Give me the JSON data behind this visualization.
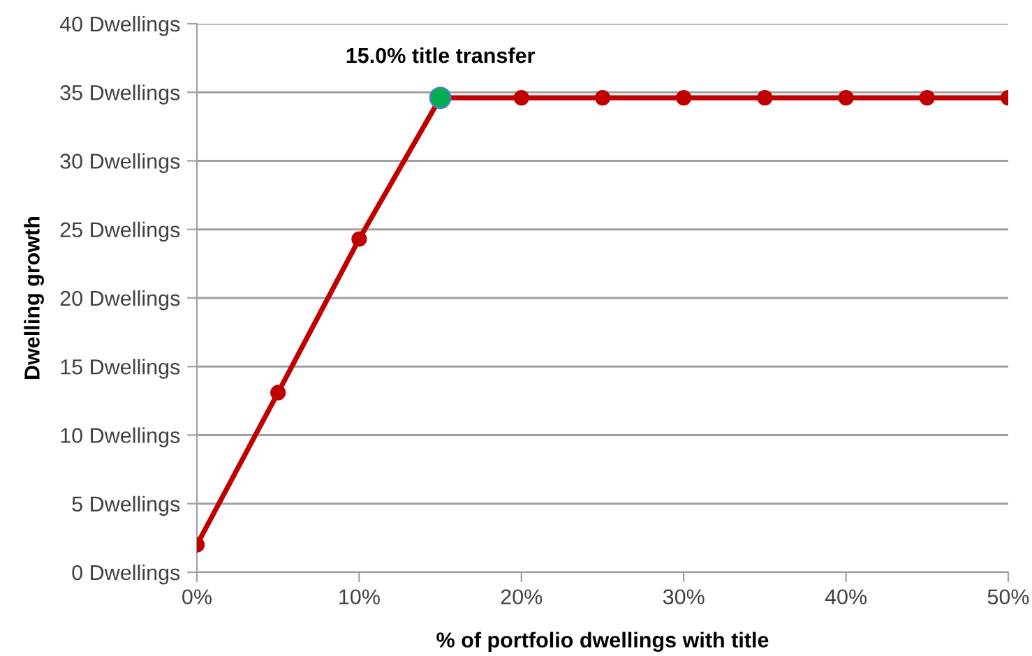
{
  "chart_data": {
    "type": "line",
    "xlabel": "% of portfolio dwellings with title",
    "ylabel": "Dwelling growth",
    "x": [
      0,
      5,
      10,
      15,
      20,
      25,
      30,
      35,
      40,
      45,
      50
    ],
    "series": [
      {
        "color": "#c00000",
        "values": [
          2.0,
          13.1,
          24.3,
          34.6,
          34.6,
          34.6,
          34.6,
          34.6,
          34.6,
          34.6,
          34.6
        ]
      },
      {
        "type": "scatter",
        "color": "#00b050",
        "x": [
          15
        ],
        "values": [
          34.6
        ]
      }
    ],
    "annotations": [
      {
        "text": "15.0% title transfer",
        "x": 15,
        "y": 34.6
      }
    ],
    "xlim": [
      0,
      50
    ],
    "ylim": [
      0,
      40
    ],
    "xticks": [
      {
        "value": 0,
        "label": "0%"
      },
      {
        "value": 10,
        "label": "10%"
      },
      {
        "value": 20,
        "label": "20%"
      },
      {
        "value": 30,
        "label": "30%"
      },
      {
        "value": 40,
        "label": "40%"
      },
      {
        "value": 50,
        "label": "50%"
      }
    ],
    "yticks": [
      {
        "value": 0,
        "label": "0 Dwellings"
      },
      {
        "value": 5,
        "label": "5 Dwellings"
      },
      {
        "value": 10,
        "label": "10 Dwellings"
      },
      {
        "value": 15,
        "label": "15 Dwellings"
      },
      {
        "value": 20,
        "label": "20 Dwellings"
      },
      {
        "value": 25,
        "label": "25 Dwellings"
      },
      {
        "value": 30,
        "label": "30 Dwellings"
      },
      {
        "value": 35,
        "label": "35 Dwellings"
      },
      {
        "value": 40,
        "label": "40 Dwellings"
      }
    ],
    "grid": "y",
    "marker": "circle",
    "line_style": "solid"
  }
}
